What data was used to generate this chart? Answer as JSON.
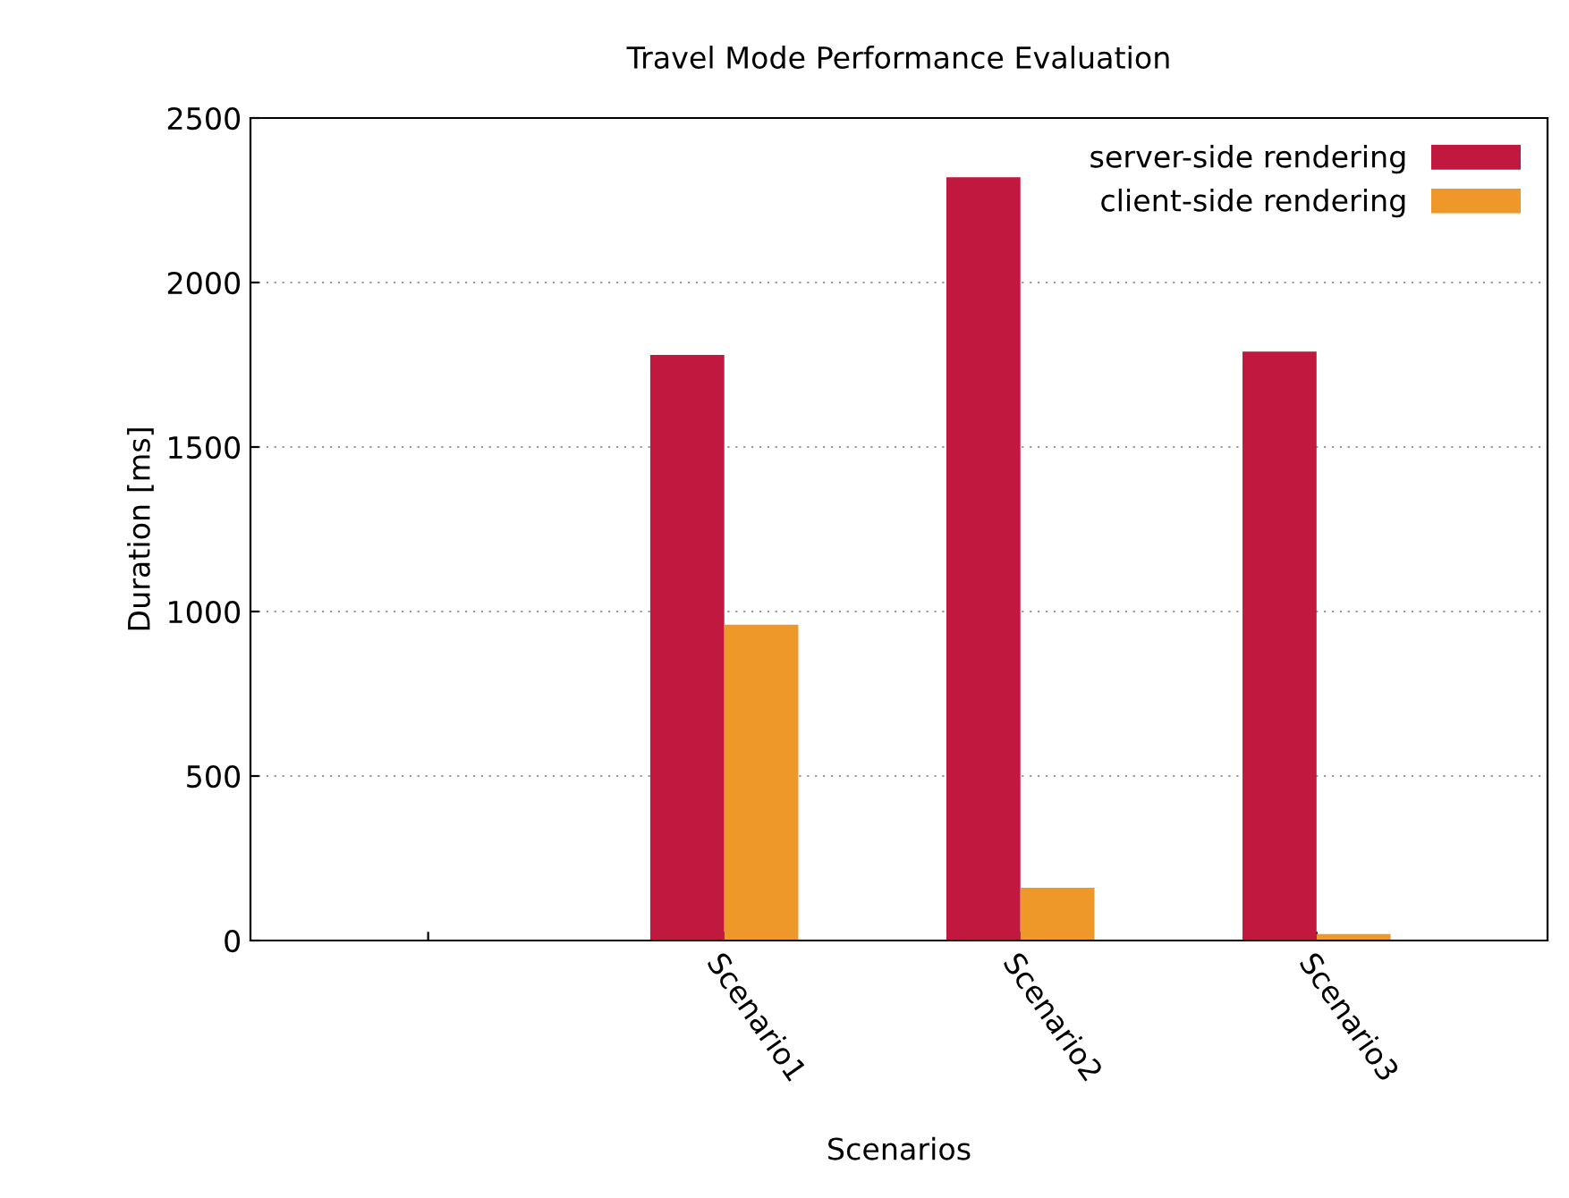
{
  "chart_data": {
    "type": "bar",
    "title": "Travel Mode Performance Evaluation",
    "xlabel": "Scenarios",
    "ylabel": "Duration [ms]",
    "categories": [
      null,
      "Scenario1",
      "Scenario2",
      "Scenario3"
    ],
    "series": [
      {
        "name": "server-side rendering",
        "color": "#c0183f",
        "values": [
          null,
          1780,
          2320,
          1790
        ]
      },
      {
        "name": "client-side rendering",
        "color": "#ef982a",
        "values": [
          null,
          960,
          160,
          20
        ]
      }
    ],
    "ylim": [
      0,
      2500
    ],
    "yticks": [
      0,
      500,
      1000,
      1500,
      2000,
      2500
    ],
    "grid": "y",
    "legend": "top right"
  }
}
